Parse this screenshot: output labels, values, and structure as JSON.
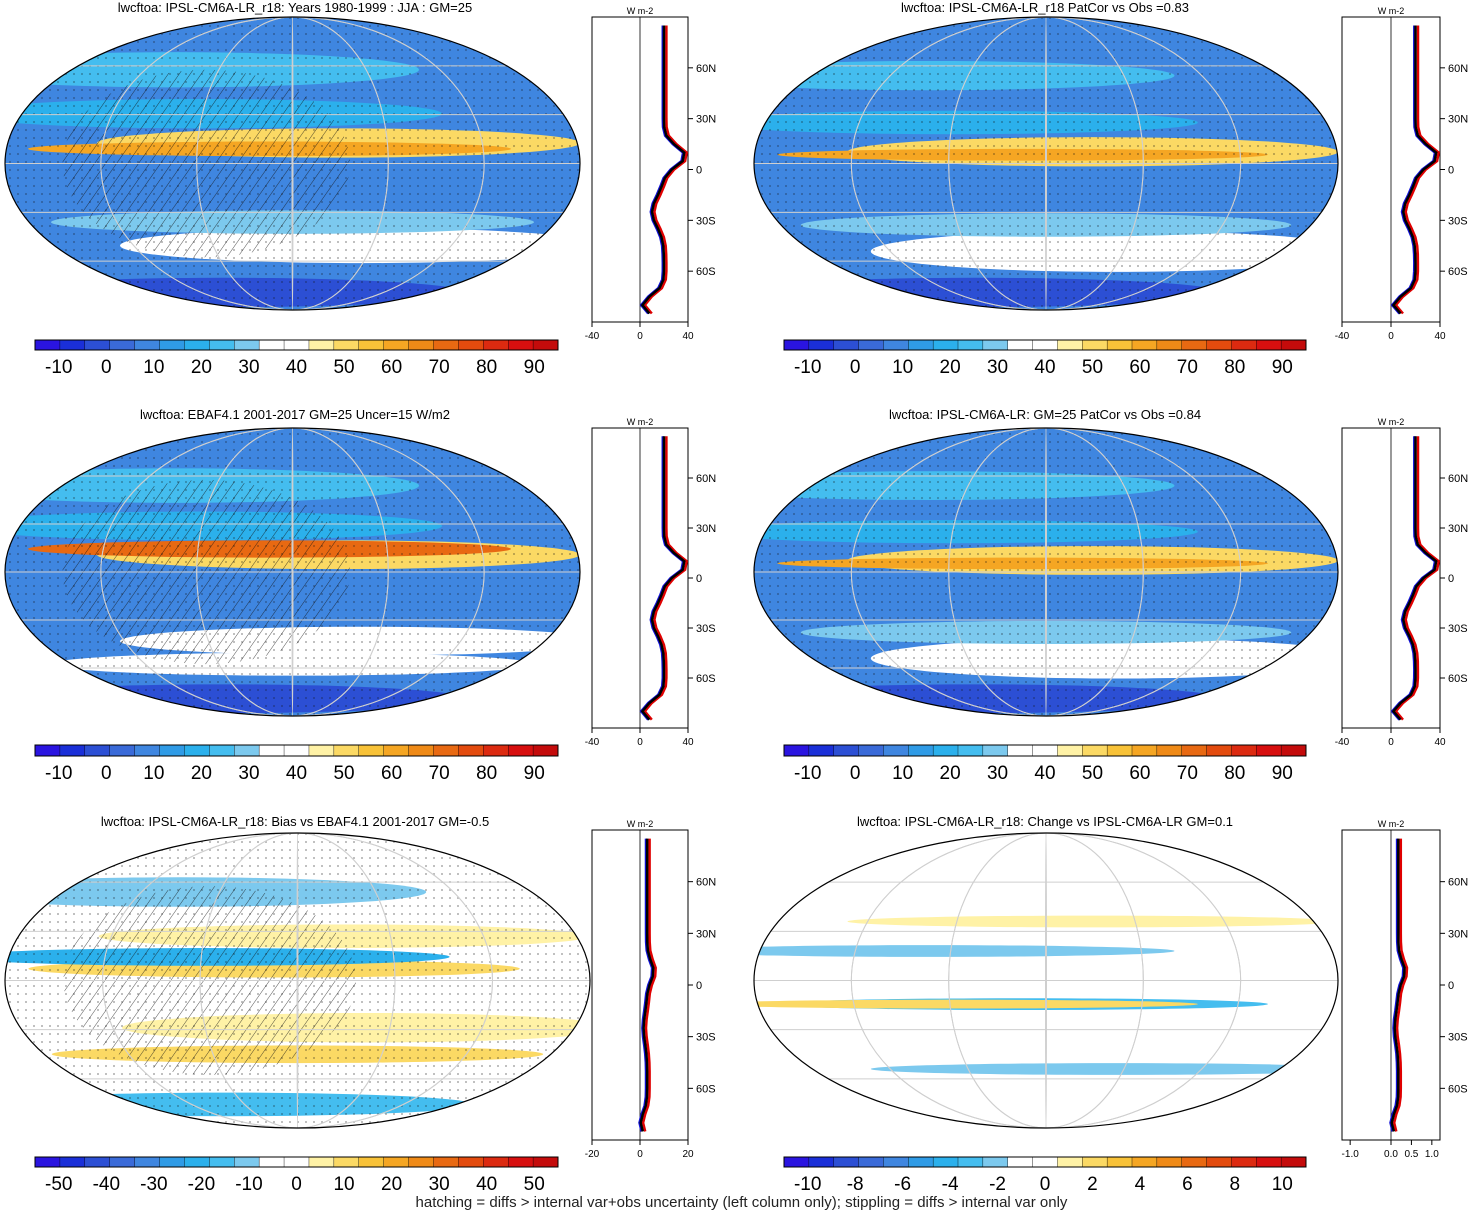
{
  "footer_note": "hatching = diffs > internal var+obs uncertainty (left column only); stippling = diffs > internal var only",
  "colors": {
    "ramp_full": [
      "#2a14e0",
      "#1a2fd8",
      "#2c4fd4",
      "#3a6ad8",
      "#3f86e0",
      "#2f9be6",
      "#2bb0ec",
      "#44bdef",
      "#7cc9ee",
      "#ffffff",
      "#ffffff",
      "#fff2a6",
      "#fbd964",
      "#f8c238",
      "#f5a623",
      "#ef8a17",
      "#e86912",
      "#e34b0e",
      "#dc2a10",
      "#d70f0f",
      "#c40b0b"
    ],
    "zonal_model": "#e00000",
    "zonal_obs": "#1010d8",
    "zonal_mean": "#000000"
  },
  "chart_data": [
    {
      "type": "heatmap",
      "title": "lwcftoa: IPSL-CM6A-LR_r18: Years 1980-1999 : JJA : GM=25",
      "colorbar": {
        "labels": [
          "-10",
          "0",
          "10",
          "20",
          "30",
          "40",
          "50",
          "60",
          "70",
          "80",
          "90"
        ]
      },
      "zonal": {
        "x_ticks": [
          "-40",
          "0",
          "40"
        ],
        "x_range": [
          -40,
          40
        ],
        "units": "W m-2",
        "lat_ticks": [
          "60N",
          "30N",
          "0",
          "30S",
          "60S"
        ]
      }
    },
    {
      "type": "heatmap",
      "title": "lwcftoa: IPSL-CM6A-LR_r18 PatCor vs Obs =0.83",
      "colorbar": {
        "labels": [
          "-10",
          "0",
          "10",
          "20",
          "30",
          "40",
          "50",
          "60",
          "70",
          "80",
          "90"
        ]
      },
      "zonal": {
        "x_ticks": [
          "-40",
          "0",
          "40"
        ],
        "x_range": [
          -40,
          40
        ],
        "units": "W m-2",
        "lat_ticks": [
          "60N",
          "30N",
          "0",
          "30S",
          "60S"
        ]
      }
    },
    {
      "type": "heatmap",
      "title": "lwcftoa: EBAF4.1 2001-2017 GM=25 Uncer=15 W/m2",
      "colorbar": {
        "labels": [
          "-10",
          "0",
          "10",
          "20",
          "30",
          "40",
          "50",
          "60",
          "70",
          "80",
          "90"
        ]
      },
      "zonal": {
        "x_ticks": [
          "-40",
          "0",
          "40"
        ],
        "x_range": [
          -40,
          40
        ],
        "units": "W m-2",
        "lat_ticks": [
          "60N",
          "30N",
          "0",
          "30S",
          "60S"
        ]
      }
    },
    {
      "type": "heatmap",
      "title": "lwcftoa: IPSL-CM6A-LR: GM=25 PatCor vs Obs =0.84",
      "colorbar": {
        "labels": [
          "-10",
          "0",
          "10",
          "20",
          "30",
          "40",
          "50",
          "60",
          "70",
          "80",
          "90"
        ]
      },
      "zonal": {
        "x_ticks": [
          "-40",
          "0",
          "40"
        ],
        "x_range": [
          -40,
          40
        ],
        "units": "W m-2",
        "lat_ticks": [
          "60N",
          "30N",
          "0",
          "30S",
          "60S"
        ]
      }
    },
    {
      "type": "heatmap",
      "title": "lwcftoa: IPSL-CM6A-LR_r18: Bias vs EBAF4.1 2001-2017 GM=-0.5",
      "colorbar": {
        "labels": [
          "-50",
          "-40",
          "-30",
          "-20",
          "-10",
          "0",
          "10",
          "20",
          "30",
          "40",
          "50"
        ]
      },
      "zonal": {
        "x_ticks": [
          "-20",
          "0",
          "20"
        ],
        "x_range": [
          -20,
          20
        ],
        "units": "W m-2",
        "lat_ticks": [
          "60N",
          "30N",
          "0",
          "30S",
          "60S"
        ]
      }
    },
    {
      "type": "heatmap",
      "title": "lwcftoa: IPSL-CM6A-LR_r18: Change vs IPSL-CM6A-LR GM=0.1",
      "colorbar": {
        "labels": [
          "-10",
          "-8",
          "-6",
          "-4",
          "-2",
          "0",
          "2",
          "4",
          "6",
          "8",
          "10"
        ]
      },
      "zonal": {
        "x_ticks": [
          "-1.0",
          "0.0",
          "0.5",
          "1.0"
        ],
        "x_range": [
          -1.2,
          1.2
        ],
        "units": "W m-2",
        "lat_ticks": [
          "60N",
          "30N",
          "0",
          "30S",
          "60S"
        ]
      }
    }
  ]
}
